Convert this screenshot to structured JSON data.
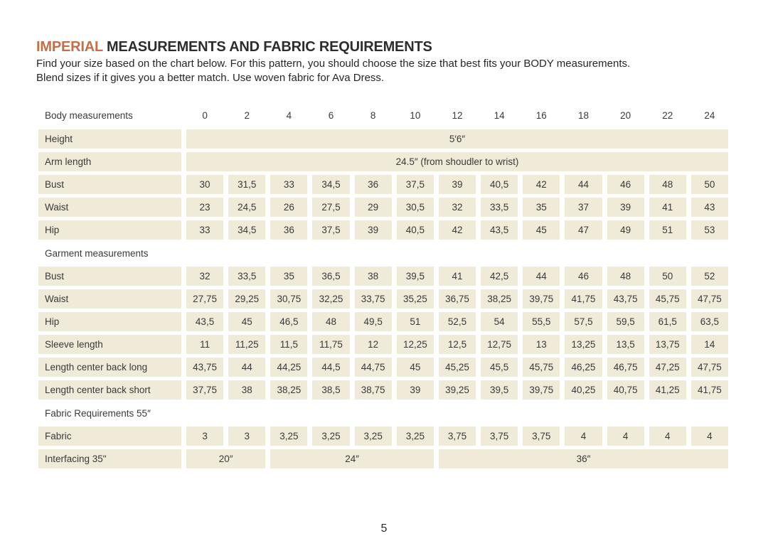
{
  "page": {
    "title_highlight": "IMPERIAL",
    "title_rest": " MEASUREMENTS AND FABRIC REQUIREMENTS",
    "intro_line1": "Find your size based on the chart below. For this pattern, you should choose the size that best fits your BODY measurements.",
    "intro_line2": "Blend sizes if it gives you a better match. Use woven fabric for Ava Dress.",
    "page_number": "5"
  },
  "colors": {
    "accent_orange": "#c2704a",
    "cell_beige": "#f0ead9",
    "text_dark": "#3a3a3a"
  },
  "size_chart": {
    "header_label": "Body measurements",
    "sizes": [
      "0",
      "2",
      "4",
      "6",
      "8",
      "10",
      "12",
      "14",
      "16",
      "18",
      "20",
      "22",
      "24"
    ],
    "rows": [
      {
        "type": "span",
        "label": "Height",
        "spans": [
          {
            "text": "5′6″",
            "cols": 13
          }
        ]
      },
      {
        "type": "span",
        "label": "Arm length",
        "spans": [
          {
            "text": "24.5″ (from shoudler to wrist)",
            "cols": 13
          }
        ]
      },
      {
        "type": "cells",
        "label": "Bust",
        "values": [
          "30",
          "31,5",
          "33",
          "34,5",
          "36",
          "37,5",
          "39",
          "40,5",
          "42",
          "44",
          "46",
          "48",
          "50"
        ]
      },
      {
        "type": "cells",
        "label": "Waist",
        "values": [
          "23",
          "24,5",
          "26",
          "27,5",
          "29",
          "30,5",
          "32",
          "33,5",
          "35",
          "37",
          "39",
          "41",
          "43"
        ]
      },
      {
        "type": "cells",
        "label": "Hip",
        "values": [
          "33",
          "34,5",
          "36",
          "37,5",
          "39",
          "40,5",
          "42",
          "43,5",
          "45",
          "47",
          "49",
          "51",
          "53"
        ]
      },
      {
        "type": "section",
        "label": "Garment measurements"
      },
      {
        "type": "cells",
        "label": "Bust",
        "values": [
          "32",
          "33,5",
          "35",
          "36,5",
          "38",
          "39,5",
          "41",
          "42,5",
          "44",
          "46",
          "48",
          "50",
          "52"
        ]
      },
      {
        "type": "cells",
        "label": "Waist",
        "values": [
          "27,75",
          "29,25",
          "30,75",
          "32,25",
          "33,75",
          "35,25",
          "36,75",
          "38,25",
          "39,75",
          "41,75",
          "43,75",
          "45,75",
          "47,75"
        ]
      },
      {
        "type": "cells",
        "label": "Hip",
        "values": [
          "43,5",
          "45",
          "46,5",
          "48",
          "49,5",
          "51",
          "52,5",
          "54",
          "55,5",
          "57,5",
          "59,5",
          "61,5",
          "63,5"
        ]
      },
      {
        "type": "cells",
        "label": "Sleeve length",
        "values": [
          "11",
          "11,25",
          "11,5",
          "11,75",
          "12",
          "12,25",
          "12,5",
          "12,75",
          "13",
          "13,25",
          "13,5",
          "13,75",
          "14"
        ]
      },
      {
        "type": "cells",
        "label": "Length center back long",
        "values": [
          "43,75",
          "44",
          "44,25",
          "44,5",
          "44,75",
          "45",
          "45,25",
          "45,5",
          "45,75",
          "46,25",
          "46,75",
          "47,25",
          "47,75"
        ]
      },
      {
        "type": "cells",
        "label": "Length center back short",
        "values": [
          "37,75",
          "38",
          "38,25",
          "38,5",
          "38,75",
          "39",
          "39,25",
          "39,5",
          "39,75",
          "40,25",
          "40,75",
          "41,25",
          "41,75"
        ]
      },
      {
        "type": "section",
        "label": "Fabric Requirements 55″"
      },
      {
        "type": "cells",
        "label": "Fabric",
        "values": [
          "3",
          "3",
          "3,25",
          "3,25",
          "3,25",
          "3,25",
          "3,75",
          "3,75",
          "3,75",
          "4",
          "4",
          "4",
          "4"
        ]
      },
      {
        "type": "span",
        "label": "Interfacing 35\"",
        "spans": [
          {
            "text": "20″",
            "cols": 2
          },
          {
            "text": "24″",
            "cols": 4
          },
          {
            "text": "36″",
            "cols": 7
          }
        ]
      }
    ]
  }
}
